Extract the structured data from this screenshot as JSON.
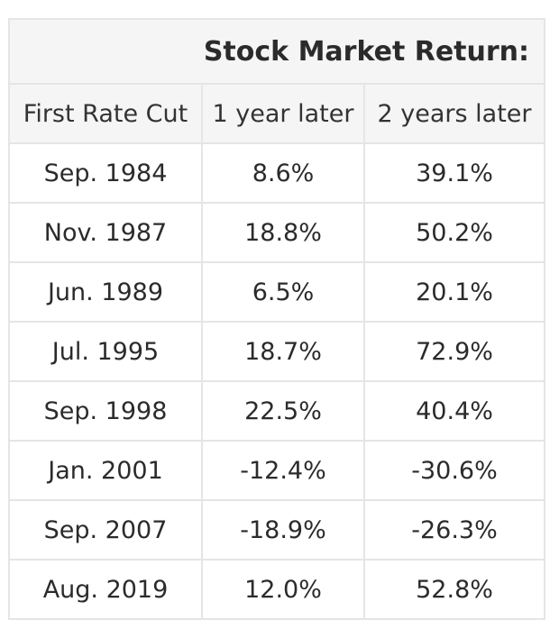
{
  "chart_data": {
    "type": "table",
    "title": "Stock Market Return:",
    "columns": [
      "First Rate Cut",
      "1 year later",
      "2 years later"
    ],
    "rows": [
      [
        "Sep. 1984",
        "8.6%",
        "39.1%"
      ],
      [
        "Nov. 1987",
        "18.8%",
        "50.2%"
      ],
      [
        "Jun. 1989",
        "6.5%",
        "20.1%"
      ],
      [
        "Jul. 1995",
        "18.7%",
        "72.9%"
      ],
      [
        "Sep. 1998",
        "22.5%",
        "40.4%"
      ],
      [
        "Jan. 2001",
        "-12.4%",
        "-30.6%"
      ],
      [
        "Sep. 2007",
        "-18.9%",
        "-26.3%"
      ],
      [
        "Aug. 2019",
        "12.0%",
        "52.8%"
      ]
    ]
  }
}
